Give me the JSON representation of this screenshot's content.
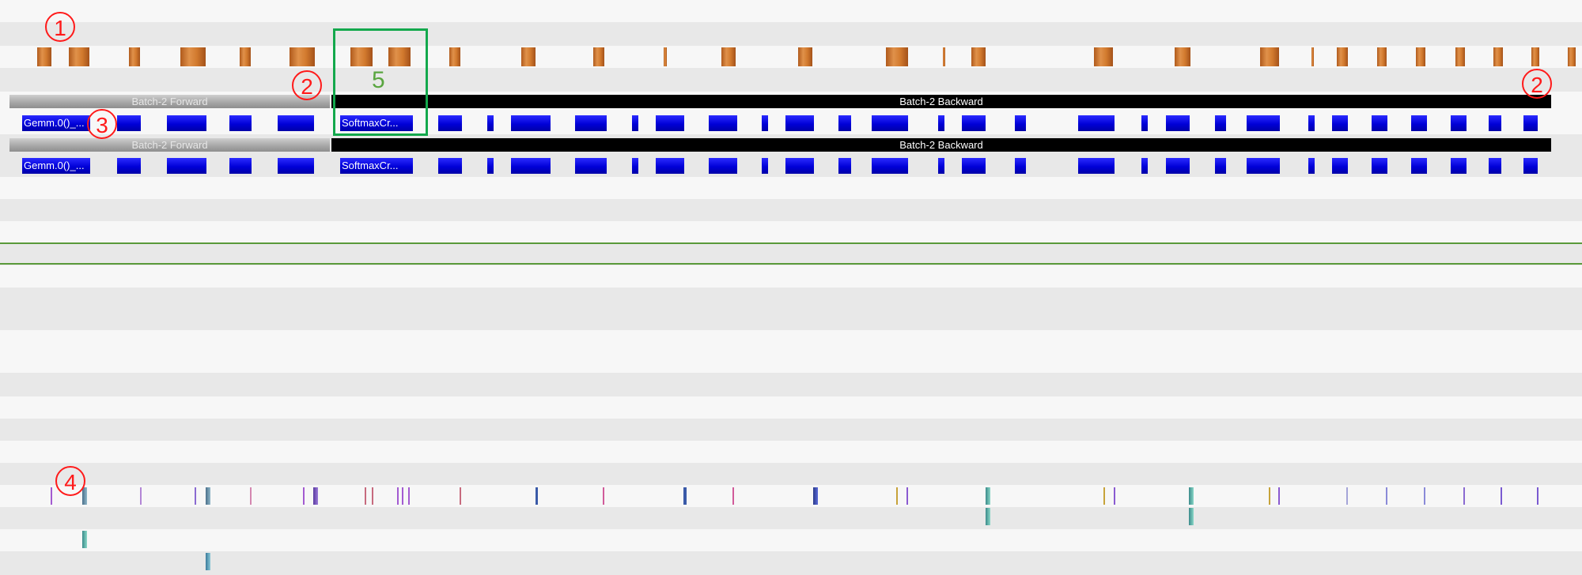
{
  "timeline": {
    "forward_label_1": "Batch-2 Forward",
    "backward_label_1": "Batch-2 Backward",
    "forward_label_2": "Batch-2 Forward",
    "backward_label_2": "Batch-2 Backward",
    "kernel_gemm_1": "Gemm.0()_...",
    "kernel_softmax_1": "SoftmaxCr...",
    "kernel_gemm_2": "Gemm.0()_...",
    "kernel_softmax_2": "SoftmaxCr..."
  },
  "annotations": {
    "callout_1": "1",
    "callout_2a": "2",
    "callout_2b": "2",
    "callout_3": "3",
    "callout_4": "4",
    "highlight_number": "5"
  },
  "colors": {
    "cpu_event": "#d27a2e",
    "gpu_kernel": "#0000d8",
    "forward_phase": "#a8a8a8",
    "backward_phase": "#000000",
    "callout": "#ff1a1a",
    "highlight": "#13a84c",
    "selection_line": "#5a9a3a"
  }
}
